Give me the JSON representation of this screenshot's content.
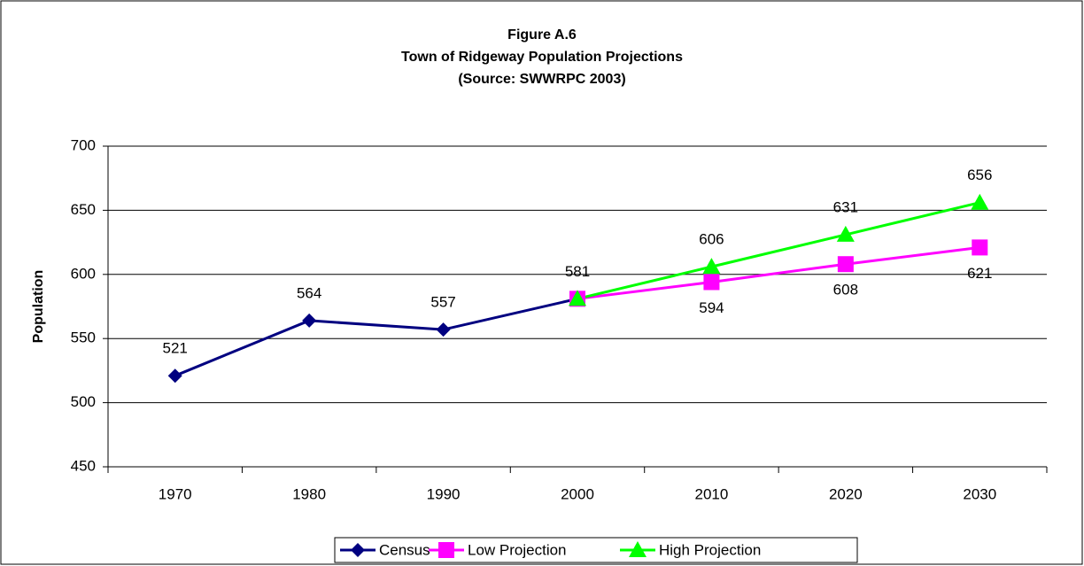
{
  "chart_data": {
    "type": "line",
    "title": "Figure A.6",
    "subtitle": "Town of Ridgeway Population Projections",
    "source": "(Source:  SWWRPC 2003)",
    "y_label": "Population",
    "categories": [
      "1970",
      "1980",
      "1990",
      "2000",
      "2010",
      "2020",
      "2030"
    ],
    "series": [
      {
        "name": "Census",
        "color": "#000080",
        "marker": "diamond",
        "label_position": "above",
        "values": [
          521,
          564,
          557,
          581,
          null,
          null,
          null
        ]
      },
      {
        "name": "Low Projection",
        "color": "#ff00ff",
        "marker": "square",
        "label_position": "below",
        "values": [
          null,
          null,
          null,
          581,
          594,
          608,
          621
        ]
      },
      {
        "name": "High Projection",
        "color": "#00ff00",
        "marker": "triangle",
        "label_position": "above",
        "values": [
          null,
          null,
          null,
          581,
          606,
          631,
          656
        ]
      }
    ],
    "ylim": [
      450,
      700
    ],
    "yticks": [
      450,
      500,
      550,
      600,
      650,
      700
    ],
    "grid": true,
    "legend": "bottom"
  }
}
